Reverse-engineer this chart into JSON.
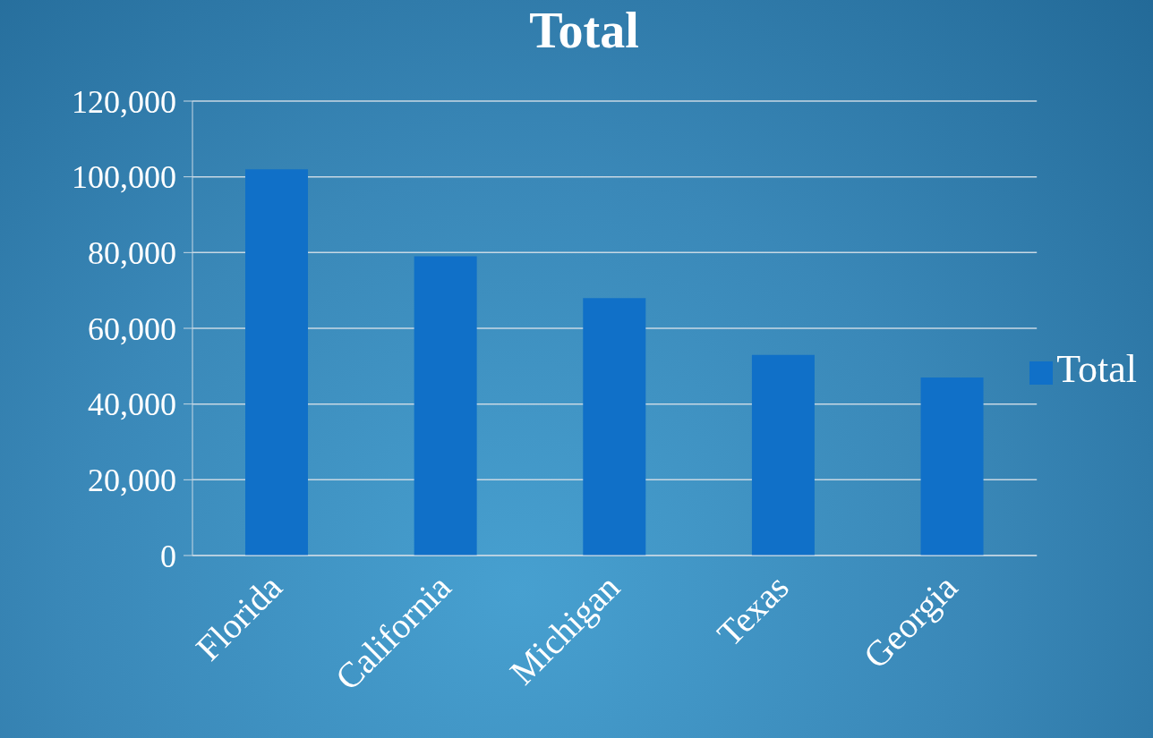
{
  "chart_data": {
    "type": "bar",
    "title": "Total",
    "categories": [
      "Florida",
      "California",
      "Michigan",
      "Texas",
      "Georgia"
    ],
    "series": [
      {
        "name": "Total",
        "color": "#1070c8",
        "values": [
          102000,
          79000,
          68000,
          53000,
          47000
        ]
      }
    ],
    "ylim": [
      0,
      120000
    ],
    "yticks": [
      0,
      {
        "value": 20000,
        "label": "20,000"
      },
      {
        "value": 40000,
        "label": "40,000"
      },
      {
        "value": 60000,
        "label": "60,000"
      },
      {
        "value": 80000,
        "label": "80,000"
      },
      {
        "value": 100000,
        "label": "100,000"
      },
      {
        "value": 120000,
        "label": "120,000"
      }
    ],
    "grid": "y",
    "legend": "right"
  }
}
